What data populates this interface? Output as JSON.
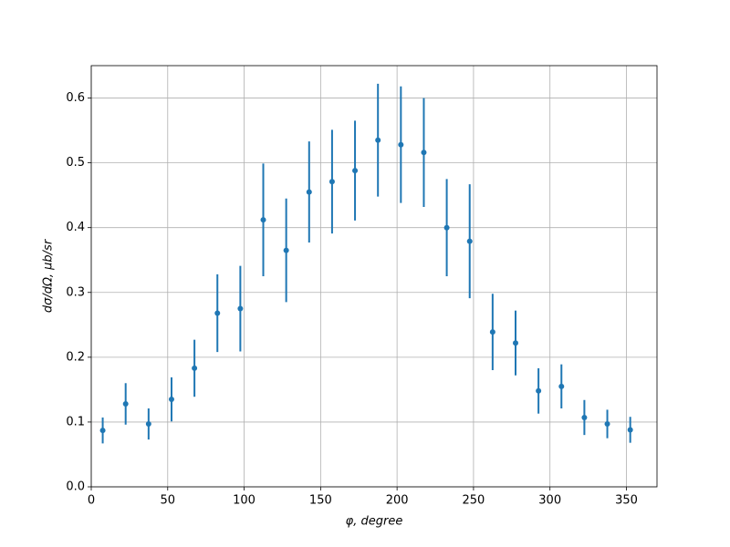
{
  "chart_data": {
    "type": "errorbar",
    "xlabel": "φ, degree",
    "ylabel": "dσ/dΩ, μb/sr",
    "x": [
      7.5,
      22.5,
      37.5,
      52.5,
      67.5,
      82.5,
      97.5,
      112.5,
      127.5,
      142.5,
      157.5,
      172.5,
      187.5,
      202.5,
      217.5,
      232.5,
      247.5,
      262.5,
      277.5,
      292.5,
      307.5,
      322.5,
      337.5,
      352.5
    ],
    "series": [
      {
        "color": "#1f77b4",
        "values": [
          0.087,
          0.128,
          0.097,
          0.135,
          0.183,
          0.268,
          0.275,
          0.412,
          0.365,
          0.455,
          0.471,
          0.488,
          0.535,
          0.528,
          0.516,
          0.4,
          0.379,
          0.239,
          0.222,
          0.148,
          0.155,
          0.107,
          0.097,
          0.088
        ],
        "errors": [
          0.02,
          0.032,
          0.024,
          0.034,
          0.044,
          0.06,
          0.066,
          0.087,
          0.08,
          0.078,
          0.08,
          0.077,
          0.087,
          0.09,
          0.084,
          0.075,
          0.088,
          0.059,
          0.05,
          0.035,
          0.034,
          0.027,
          0.022,
          0.02
        ]
      }
    ],
    "xlim": [
      0,
      370
    ],
    "ylim": [
      0,
      0.65
    ],
    "xticks": [
      0,
      50,
      100,
      150,
      200,
      250,
      300,
      350
    ],
    "yticks": [
      {
        "value": 0,
        "label": "0.0"
      },
      0.1,
      0.2,
      0.3,
      0.4,
      0.5,
      0.6
    ],
    "grid": true
  }
}
